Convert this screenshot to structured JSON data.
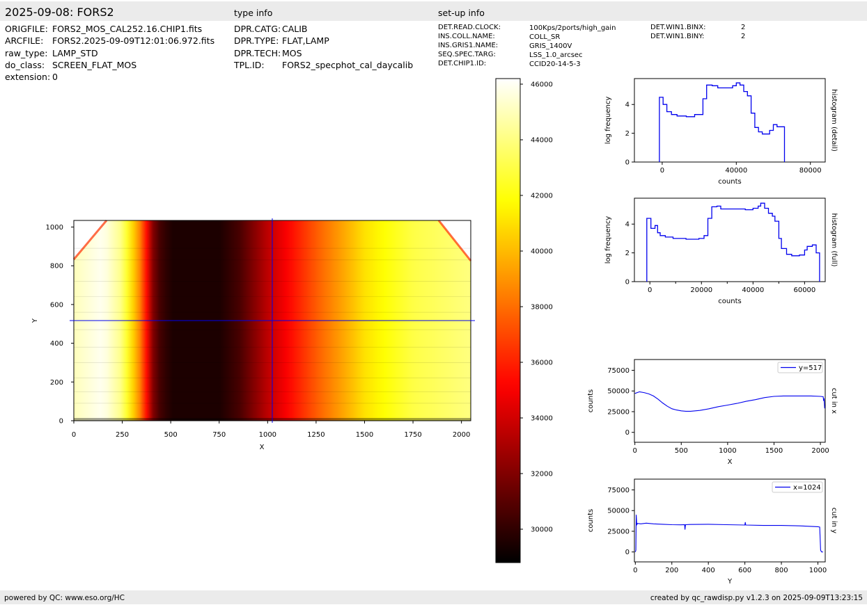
{
  "header": {
    "title": "2025-09-08: FORS2",
    "type_info_label": "type info",
    "setup_info_label": "set-up info"
  },
  "file_info": [
    {
      "key": "ORIGFILE:",
      "value": "FORS2_MOS_CAL252.16.CHIP1.fits"
    },
    {
      "key": "ARCFILE:",
      "value": "FORS2.2025-09-09T12:01:06.972.fits"
    },
    {
      "key": "raw_type:",
      "value": "LAMP_STD"
    },
    {
      "key": "do_class:",
      "value": "SCREEN_FLAT_MOS"
    },
    {
      "key": "extension:",
      "value": "0"
    }
  ],
  "type_info": [
    {
      "key": "DPR.CATG:",
      "value": "CALIB"
    },
    {
      "key": "DPR.TYPE:",
      "value": "FLAT,LAMP"
    },
    {
      "key": "DPR.TECH:",
      "value": "MOS"
    },
    {
      "key": "TPL.ID:",
      "value": "FORS2_specphot_cal_daycalib"
    }
  ],
  "setup_info": [
    {
      "key": "DET.READ.CLOCK:",
      "value": "100Kps/2ports/high_gain"
    },
    {
      "key": "INS.COLL.NAME:",
      "value": "COLL_SR"
    },
    {
      "key": "INS.GRIS1.NAME:",
      "value": "GRIS_1400V"
    },
    {
      "key": "SEQ.SPEC.TARG:",
      "value": "LSS_1.0_arcsec"
    },
    {
      "key": "DET.CHIP1.ID:",
      "value": "CCID20-14-5-3"
    }
  ],
  "setup_info_2": [
    {
      "key": "DET.WIN1.BINX:",
      "value": "2"
    },
    {
      "key": "DET.WIN1.BINY:",
      "value": "2"
    }
  ],
  "footer": {
    "left": "powered by QC: www.eso.org/HC",
    "right": "created by qc_rawdisp.py v1.2.3 on 2025-09-09T13:23:15"
  },
  "colors": {
    "line": "#0000ee",
    "header_bg": "#ebebeb"
  },
  "chart_data": [
    {
      "type": "heatmap",
      "id": "image",
      "xlabel": "X",
      "ylabel": "Y",
      "xlim": [
        0,
        2048
      ],
      "ylim": [
        0,
        1034
      ],
      "xticks": [
        0,
        250,
        500,
        750,
        1000,
        1250,
        1500,
        1750,
        2000
      ],
      "yticks": [
        0,
        200,
        400,
        600,
        800,
        1000
      ],
      "crosshair": {
        "x": 1024,
        "y": 517
      },
      "colormap": "hot",
      "column_profile": [
        [
          0,
          45000
        ],
        [
          150,
          46000
        ],
        [
          250,
          44000
        ],
        [
          350,
          38000
        ],
        [
          420,
          31000
        ],
        [
          500,
          29500
        ],
        [
          750,
          29500
        ],
        [
          850,
          30500
        ],
        [
          1000,
          33500
        ],
        [
          1250,
          37500
        ],
        [
          1500,
          41000
        ],
        [
          1750,
          43000
        ],
        [
          2048,
          44000
        ]
      ]
    },
    {
      "type": "colorbar",
      "id": "colorbar",
      "range": [
        28800,
        46200
      ],
      "ticks": [
        30000,
        32000,
        34000,
        36000,
        38000,
        40000,
        42000,
        44000,
        46000
      ]
    },
    {
      "type": "line",
      "id": "hist_detail",
      "xlabel": "counts",
      "ylabel": "log frequency",
      "side_label": "histogram (detail)",
      "xlim": [
        -15000,
        88000
      ],
      "ylim": [
        0,
        5.8
      ],
      "xticks": [
        0,
        40000,
        80000
      ],
      "yticks": [
        0,
        2,
        4
      ],
      "steps": [
        [
          -1500,
          0
        ],
        [
          -1500,
          4.5
        ],
        [
          500,
          4.5
        ],
        [
          500,
          4.0
        ],
        [
          2500,
          4.0
        ],
        [
          2500,
          3.5
        ],
        [
          5000,
          3.5
        ],
        [
          5000,
          3.3
        ],
        [
          8000,
          3.3
        ],
        [
          8000,
          3.2
        ],
        [
          13000,
          3.2
        ],
        [
          13000,
          3.15
        ],
        [
          17500,
          3.15
        ],
        [
          17500,
          3.3
        ],
        [
          22000,
          3.3
        ],
        [
          22000,
          4.4
        ],
        [
          24000,
          4.4
        ],
        [
          24000,
          5.35
        ],
        [
          27000,
          5.35
        ],
        [
          27000,
          5.3
        ],
        [
          30000,
          5.3
        ],
        [
          30000,
          5.15
        ],
        [
          38000,
          5.15
        ],
        [
          38000,
          5.3
        ],
        [
          40000,
          5.3
        ],
        [
          40000,
          5.5
        ],
        [
          42000,
          5.5
        ],
        [
          42000,
          5.35
        ],
        [
          44000,
          5.35
        ],
        [
          44000,
          4.9
        ],
        [
          46000,
          4.9
        ],
        [
          46000,
          4.6
        ],
        [
          48000,
          4.6
        ],
        [
          48000,
          3.4
        ],
        [
          50000,
          3.4
        ],
        [
          50000,
          2.4
        ],
        [
          52000,
          2.4
        ],
        [
          52000,
          2.1
        ],
        [
          54000,
          2.1
        ],
        [
          54000,
          1.95
        ],
        [
          58000,
          1.95
        ],
        [
          58000,
          2.2
        ],
        [
          60000,
          2.2
        ],
        [
          60000,
          2.6
        ],
        [
          62000,
          2.6
        ],
        [
          62000,
          2.45
        ],
        [
          66000,
          2.45
        ],
        [
          66000,
          0
        ]
      ]
    },
    {
      "type": "line",
      "id": "hist_full",
      "xlabel": "counts",
      "ylabel": "log frequency",
      "side_label": "histogram (full)",
      "xlim": [
        -6000,
        68000
      ],
      "ylim": [
        0,
        5.8
      ],
      "xticks": [
        0,
        20000,
        40000,
        60000
      ],
      "yticks": [
        0,
        2,
        4
      ],
      "steps": [
        [
          -1200,
          0
        ],
        [
          -1200,
          4.4
        ],
        [
          400,
          4.4
        ],
        [
          400,
          3.7
        ],
        [
          2000,
          3.7
        ],
        [
          2000,
          3.9
        ],
        [
          3000,
          3.9
        ],
        [
          3000,
          3.4
        ],
        [
          4000,
          3.4
        ],
        [
          4000,
          3.2
        ],
        [
          6000,
          3.2
        ],
        [
          6000,
          3.1
        ],
        [
          9000,
          3.1
        ],
        [
          9000,
          3.0
        ],
        [
          14000,
          3.0
        ],
        [
          14000,
          2.95
        ],
        [
          19000,
          2.95
        ],
        [
          19000,
          3.0
        ],
        [
          21000,
          3.0
        ],
        [
          21000,
          3.2
        ],
        [
          22500,
          3.2
        ],
        [
          22500,
          4.4
        ],
        [
          24000,
          4.4
        ],
        [
          24000,
          5.2
        ],
        [
          26000,
          5.2
        ],
        [
          26000,
          5.25
        ],
        [
          27500,
          5.25
        ],
        [
          27500,
          5.05
        ],
        [
          37000,
          5.05
        ],
        [
          37000,
          5.0
        ],
        [
          40000,
          5.0
        ],
        [
          40000,
          5.1
        ],
        [
          42000,
          5.1
        ],
        [
          42000,
          5.25
        ],
        [
          43000,
          5.25
        ],
        [
          43000,
          5.45
        ],
        [
          44500,
          5.45
        ],
        [
          44500,
          5.1
        ],
        [
          46000,
          5.1
        ],
        [
          46000,
          4.75
        ],
        [
          47500,
          4.75
        ],
        [
          47500,
          4.55
        ],
        [
          48500,
          4.55
        ],
        [
          48500,
          4.2
        ],
        [
          50000,
          4.2
        ],
        [
          50000,
          3.0
        ],
        [
          51000,
          3.0
        ],
        [
          51000,
          2.3
        ],
        [
          53000,
          2.3
        ],
        [
          53000,
          1.9
        ],
        [
          55000,
          1.9
        ],
        [
          55000,
          1.8
        ],
        [
          58000,
          1.8
        ],
        [
          58000,
          1.85
        ],
        [
          60000,
          1.85
        ],
        [
          60000,
          2.2
        ],
        [
          61000,
          2.2
        ],
        [
          61000,
          2.45
        ],
        [
          63000,
          2.45
        ],
        [
          63000,
          2.55
        ],
        [
          64500,
          2.55
        ],
        [
          64500,
          2.0
        ],
        [
          65800,
          2.0
        ],
        [
          65800,
          0
        ]
      ]
    },
    {
      "type": "line",
      "id": "cut_x",
      "xlabel": "X",
      "ylabel": "counts",
      "side_label": "cut in x",
      "legend": "y=517",
      "xlim": [
        -5,
        2052
      ],
      "ylim": [
        -12000,
        88000
      ],
      "xticks": [
        0,
        500,
        1000,
        1500,
        2000
      ],
      "yticks": [
        0,
        25000,
        50000,
        75000
      ],
      "x": [
        0,
        50,
        100,
        150,
        200,
        250,
        300,
        350,
        400,
        450,
        500,
        550,
        600,
        700,
        800,
        900,
        1000,
        1100,
        1200,
        1300,
        1400,
        1500,
        1600,
        1700,
        1800,
        1900,
        2000,
        2030,
        2035,
        2040,
        2046
      ],
      "y": [
        47000,
        49000,
        48000,
        46500,
        44000,
        40000,
        35500,
        31500,
        28500,
        27000,
        26000,
        25500,
        25500,
        26500,
        28500,
        31000,
        33000,
        35000,
        37500,
        39500,
        42000,
        43500,
        44000,
        44000,
        44000,
        44000,
        43500,
        43000,
        38000,
        41000,
        29000
      ]
    },
    {
      "type": "line",
      "id": "cut_y",
      "xlabel": "Y",
      "ylabel": "counts",
      "side_label": "cut in y",
      "legend": "x=1024",
      "xlim": [
        -5,
        1040
      ],
      "ylim": [
        -12000,
        88000
      ],
      "xticks": [
        0,
        200,
        400,
        600,
        800,
        1000
      ],
      "yticks": [
        0,
        25000,
        50000,
        75000
      ],
      "x": [
        0,
        3,
        5,
        8,
        12,
        30,
        60,
        100,
        150,
        200,
        250,
        270,
        272,
        275,
        300,
        400,
        500,
        600,
        602,
        605,
        700,
        800,
        900,
        1000,
        1010,
        1015,
        1020,
        1028
      ],
      "y": [
        0,
        2000,
        45000,
        33000,
        34500,
        34000,
        34800,
        34000,
        33500,
        33000,
        32800,
        33000,
        27000,
        33000,
        33200,
        33500,
        33000,
        32500,
        36000,
        32500,
        32000,
        32000,
        31500,
        30500,
        30000,
        2000,
        0,
        0
      ]
    }
  ]
}
